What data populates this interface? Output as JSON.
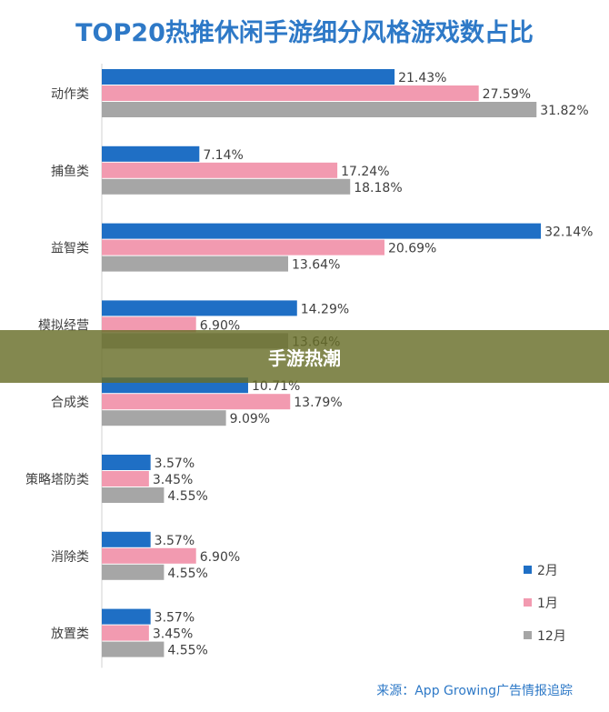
{
  "chart_data": {
    "type": "bar",
    "orientation": "horizontal",
    "title": "TOP20热推休闲手游细分风格游戏数占比",
    "categories": [
      "动作类",
      "捕鱼类",
      "益智类",
      "模拟经营",
      "合成类",
      "策略塔防类",
      "消除类",
      "放置类"
    ],
    "series": [
      {
        "name": "2月",
        "color": "#1f6fc5",
        "values": [
          21.43,
          7.14,
          32.14,
          14.29,
          10.71,
          3.57,
          3.57,
          3.57
        ],
        "labels": [
          "21.43%",
          "7.14%",
          "32.14%",
          "14.29%",
          "10.71%",
          "3.57%",
          "3.57%",
          "3.57%"
        ]
      },
      {
        "name": "1月",
        "color": "#f29ab0",
        "values": [
          27.59,
          17.24,
          20.69,
          6.9,
          13.79,
          3.45,
          6.9,
          3.45
        ],
        "labels": [
          "27.59%",
          "17.24%",
          "20.69%",
          "6.90%",
          "13.79%",
          "3.45%",
          "6.90%",
          "3.45%"
        ]
      },
      {
        "name": "12月",
        "color": "#a6a6a6",
        "values": [
          31.82,
          18.18,
          13.64,
          13.64,
          9.09,
          4.55,
          4.55,
          4.55
        ],
        "labels": [
          "31.82%",
          "18.18%",
          "13.64%",
          "13.64%",
          "9.09%",
          "4.55%",
          "4.55%",
          "4.55%"
        ]
      }
    ],
    "legend_position": "bottom-right",
    "grid": false,
    "value_unit": "%"
  },
  "banner_text": "手游热潮",
  "source_text": "来源：App Growing广告情报追踪"
}
